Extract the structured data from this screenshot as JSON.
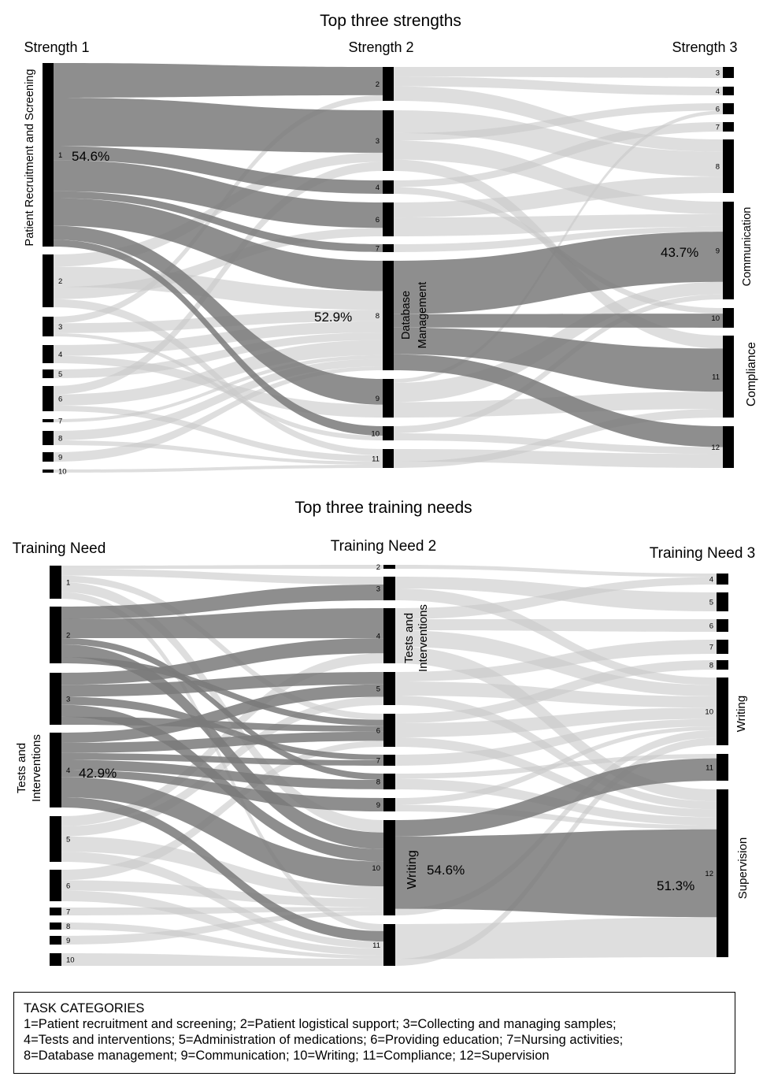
{
  "colors": {
    "node": "#000000",
    "flow_light": "#c8c8c8",
    "flow_dark": "#7a7a7a",
    "text": "#000000"
  },
  "strengths": {
    "title": "Top three strengths",
    "column_headers": [
      "Strength 1",
      "Strength 2",
      "Strength 3"
    ],
    "col1_nodes": [
      "1",
      "2",
      "3",
      "4",
      "5",
      "6",
      "7",
      "8",
      "9",
      "10"
    ],
    "col2_nodes": [
      "2",
      "3",
      "4",
      "6",
      "7",
      "8",
      "9",
      "10",
      "11"
    ],
    "col3_nodes": [
      "3",
      "4",
      "6",
      "7",
      "8",
      "9",
      "10",
      "11",
      "12"
    ],
    "group_labels": {
      "col1": "Patient Recruitment and Screening",
      "col2": [
        "Database",
        "Management"
      ],
      "col3_a": "Communication",
      "col3_b": "Compliance"
    },
    "percentages": {
      "col1": "54.6%",
      "col2": "52.9%",
      "col3": "43.7%"
    }
  },
  "training": {
    "title": "Top three training needs",
    "column_headers": [
      "Training Need",
      "Training Need 2",
      "Training Need 3"
    ],
    "col1_nodes": [
      "1",
      "2",
      "3",
      "4",
      "5",
      "6",
      "7",
      "8",
      "9",
      "10"
    ],
    "col2_nodes": [
      "2",
      "3",
      "4",
      "5",
      "6",
      "7",
      "8",
      "9",
      "10",
      "11"
    ],
    "col3_nodes": [
      "4",
      "5",
      "6",
      "7",
      "8",
      "10",
      "11",
      "12"
    ],
    "group_labels": {
      "col1": [
        "Tests and",
        "Interventions"
      ],
      "col2_a": [
        "Tests and",
        "Interventions"
      ],
      "col2_b": "Writing",
      "col3_a": "Writing",
      "col3_b": "Supervision"
    },
    "percentages": {
      "col1": "42.9%",
      "col2": "54.6%",
      "col3": "51.3%"
    }
  },
  "legend": {
    "title": "TASK CATEGORIES",
    "lines": [
      "1=Patient recruitment and screening; 2=Patient logistical support; 3=Collecting and managing samples;",
      "4=Tests and interventions; 5=Administration of medications; 6=Providing education; 7=Nursing activities;",
      "8=Database management; 9=Communication; 10=Writing; 11=Compliance; 12=Supervision"
    ]
  }
}
